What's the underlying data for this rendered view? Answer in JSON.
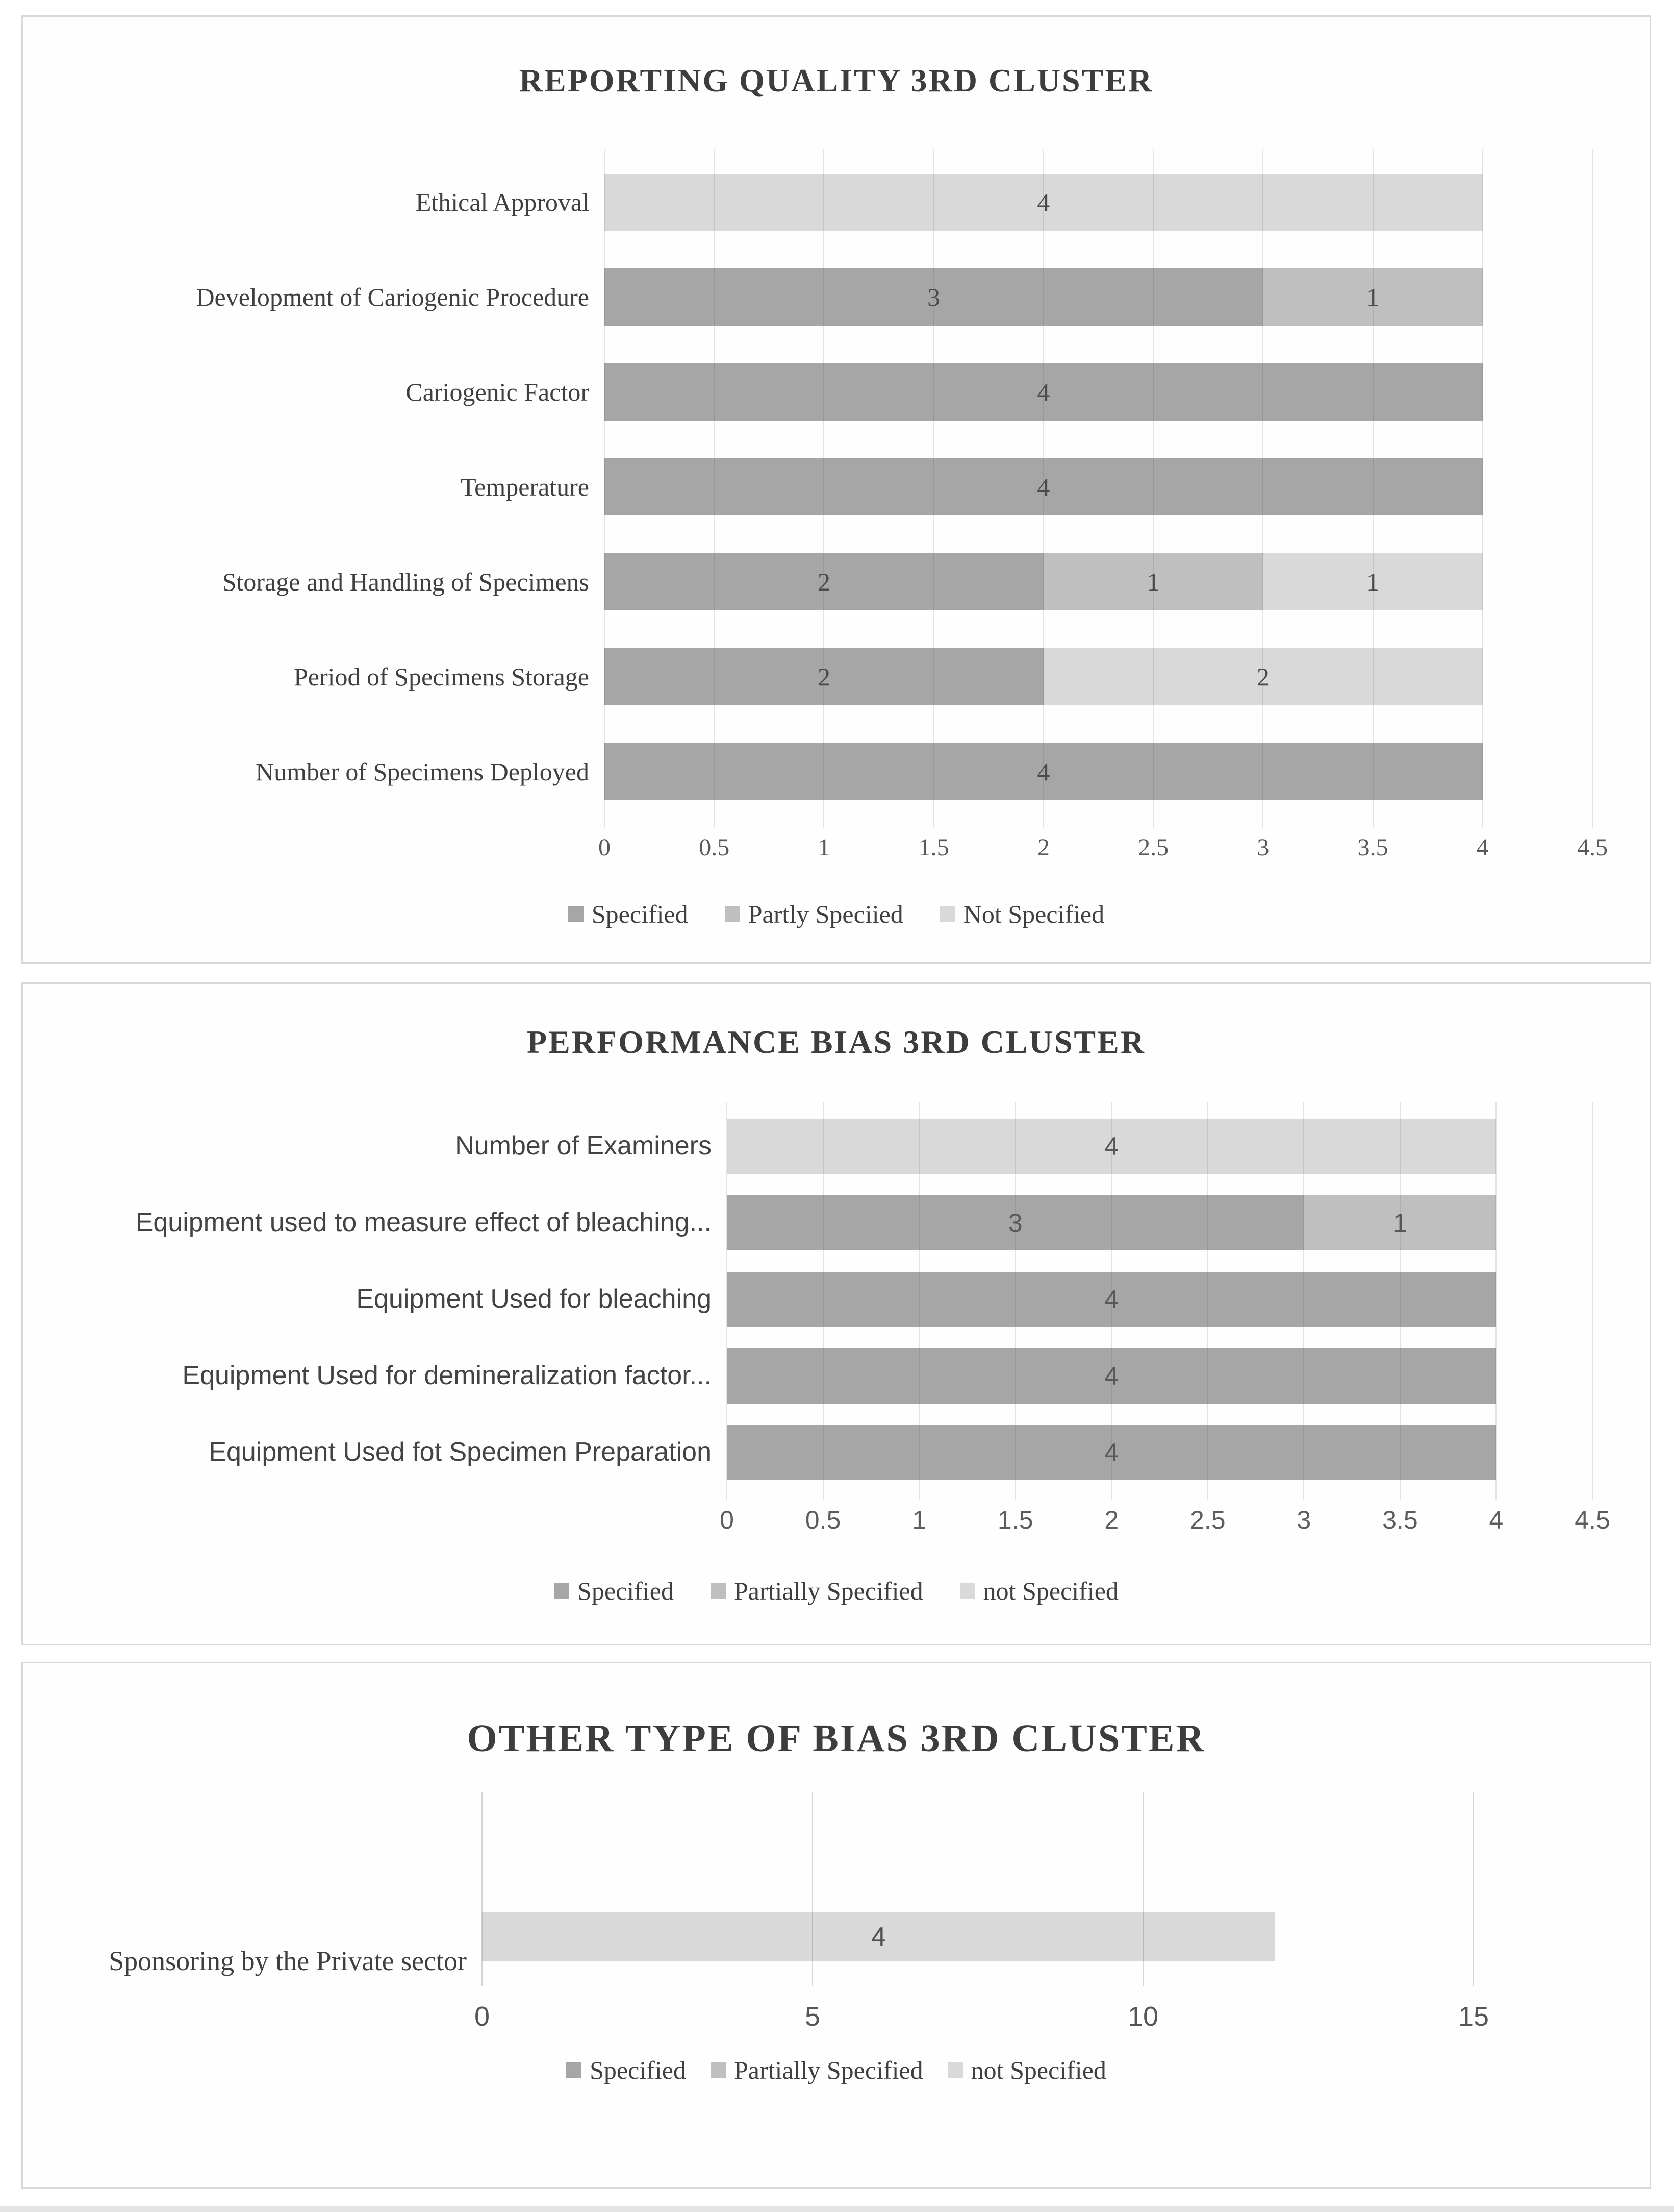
{
  "colors": {
    "specified": "#a6a6a6",
    "partially_specified": "#bfbfbf",
    "not_specified": "#d9d9d9",
    "gridline": "#d9d9d9",
    "panel_border": "#d8d8d8",
    "title_text": "#3d3d3d",
    "label_text": "#3f3f3f",
    "axis_text": "#595959"
  },
  "chart_data": [
    {
      "type": "bar",
      "orientation": "horizontal",
      "stacked": true,
      "grid": "vertical",
      "legend_position": "bottom",
      "title": "REPORTING QUALITY 3RD CLUSTER",
      "categories": [
        "Ethical Approval",
        "Development of Cariogenic Procedure",
        "Cariogenic Factor",
        "Temperature",
        "Storage and Handling of Specimens",
        "Period of Specimens Storage",
        "Number of Specimens Deployed"
      ],
      "series": [
        {
          "name": "Specified",
          "color_key": "specified",
          "values": [
            0,
            3,
            4,
            4,
            2,
            2,
            4
          ]
        },
        {
          "name": "Partly Speciied",
          "color_key": "partially_specified",
          "values": [
            0,
            1,
            0,
            0,
            1,
            0,
            0
          ]
        },
        {
          "name": "Not Specified",
          "color_key": "not_specified",
          "values": [
            4,
            0,
            0,
            0,
            1,
            2,
            0
          ]
        }
      ],
      "xlim": [
        0,
        4.5
      ],
      "xticks": [
        "0",
        "0.5",
        "1",
        "1.5",
        "2",
        "2.5",
        "3",
        "3.5",
        "4",
        "4.5"
      ],
      "legend": [
        "Specified",
        "Partly Speciied",
        "Not Specified"
      ]
    },
    {
      "type": "bar",
      "orientation": "horizontal",
      "stacked": true,
      "grid": "vertical",
      "legend_position": "bottom",
      "title": "PERFORMANCE BIAS 3RD CLUSTER",
      "categories": [
        "Number of Examiners",
        "Equipment used to measure effect of bleaching...",
        "Equipment Used for bleaching",
        "Equipment Used for demineralization factor...",
        "Equipment Used fot Specimen Preparation"
      ],
      "series": [
        {
          "name": "Specified",
          "color_key": "specified",
          "values": [
            0,
            3,
            4,
            4,
            4
          ]
        },
        {
          "name": "Partially Specified",
          "color_key": "partially_specified",
          "values": [
            0,
            1,
            0,
            0,
            0
          ]
        },
        {
          "name": "not Specified",
          "color_key": "not_specified",
          "values": [
            4,
            0,
            0,
            0,
            0
          ]
        }
      ],
      "xlim": [
        0,
        4.5
      ],
      "xticks": [
        "0",
        "0.5",
        "1",
        "1.5",
        "2",
        "2.5",
        "3",
        "3.5",
        "4",
        "4.5"
      ],
      "legend": [
        "Specified",
        "Partially Specified",
        "not Specified"
      ]
    },
    {
      "type": "bar",
      "orientation": "horizontal",
      "stacked": true,
      "grid": "vertical",
      "legend_position": "bottom",
      "title": "OTHER TYPE OF BIAS 3RD CLUSTER",
      "categories": [
        "Sponsoring by the Private sector"
      ],
      "series": [
        {
          "name": "Specified",
          "color_key": "specified",
          "values": [
            0
          ]
        },
        {
          "name": "Partially Specified",
          "color_key": "partially_specified",
          "values": [
            0
          ]
        },
        {
          "name": "not Specified",
          "color_key": "not_specified",
          "values": [
            4
          ],
          "drawn_values": [
            12
          ]
        }
      ],
      "xlim": [
        0,
        15
      ],
      "xticks": [
        "0",
        "5",
        "10",
        "15"
      ],
      "legend": [
        "Specified",
        "Partially Specified",
        "not Specified"
      ]
    }
  ]
}
